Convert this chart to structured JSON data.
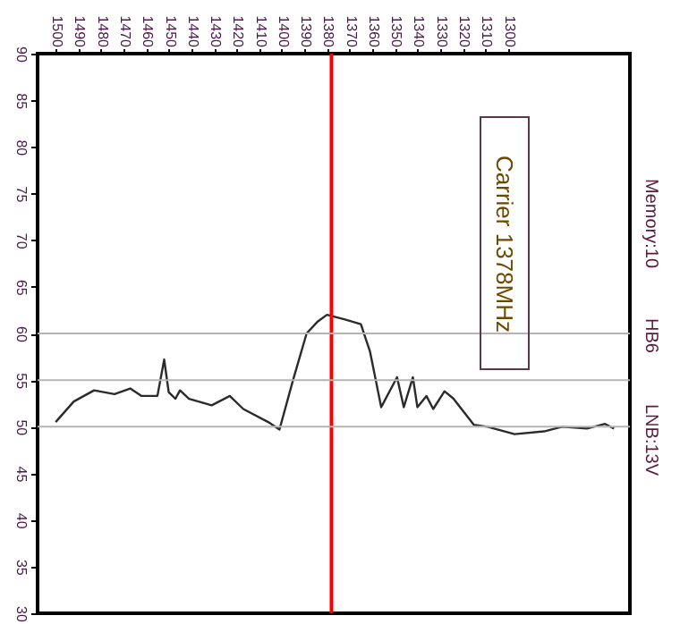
{
  "chart_data": {
    "type": "line",
    "annotations": [
      "Carrier 1378MHz",
      "Memory:10",
      "HB6",
      "LNB:13V"
    ],
    "x": [
      1500,
      1492,
      1483,
      1474,
      1467,
      1462,
      1455,
      1452,
      1450,
      1447,
      1445,
      1441,
      1431,
      1423,
      1417,
      1406,
      1401,
      1395,
      1389,
      1384,
      1380,
      1372,
      1365,
      1361,
      1356,
      1349,
      1346,
      1342,
      1340,
      1336,
      1333,
      1328,
      1324,
      1315,
      1309,
      1297,
      1284,
      1276,
      1265,
      1257,
      1253
    ],
    "series": [
      {
        "color": "#2b2b2b",
        "values": [
          50.5,
          52.7,
          53.9,
          53.5,
          54.1,
          53.3,
          53.3,
          57.2,
          53.7,
          53.0,
          53.9,
          53.0,
          52.3,
          53.3,
          51.9,
          50.5,
          49.7,
          55.0,
          60.0,
          61.3,
          62.0,
          61.5,
          61.0,
          58.1,
          52.1,
          55.3,
          52.1,
          55.3,
          52.1,
          53.3,
          51.9,
          53.8,
          53.0,
          50.2,
          50.0,
          49.2,
          49.5,
          50.0,
          49.8,
          50.3,
          49.8
        ]
      }
    ],
    "xlim": [
      1508,
      1246
    ],
    "xticks": [
      1500,
      1490,
      1480,
      1470,
      1460,
      1450,
      1440,
      1430,
      1420,
      1410,
      1400,
      1390,
      1380,
      1370,
      1360,
      1350,
      1340,
      1330,
      1320,
      1310,
      1300
    ],
    "ylim": [
      30,
      90
    ],
    "yticks": [
      30,
      35,
      40,
      45,
      50,
      55,
      60,
      65,
      70,
      75,
      80,
      85,
      90
    ],
    "ref_lines": [
      {
        "axis": "x",
        "value": 1378,
        "color": "#ff0000"
      },
      {
        "axis": "y",
        "value": 60,
        "color": "#b4b4b4"
      },
      {
        "axis": "y",
        "value": 55,
        "color": "#b4b4b4"
      },
      {
        "axis": "y",
        "value": 50,
        "color": "#b4b4b4"
      }
    ],
    "grid": false,
    "marker": "none",
    "line_style": "solid"
  }
}
